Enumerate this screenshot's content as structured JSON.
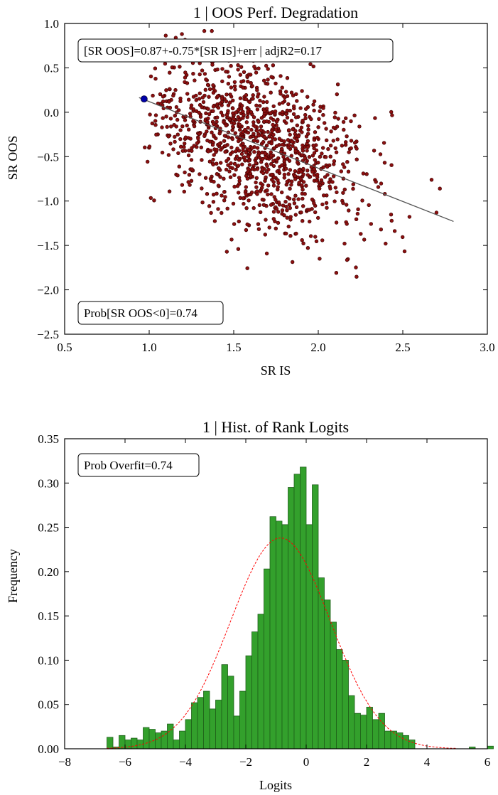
{
  "colors": {
    "scatter_fill": "#8b1010",
    "scatter_edge": "#3a0000",
    "highlight_point": "#0000aa",
    "fit_line": "#555555",
    "bar_fill": "#33a02c",
    "bar_edge": "#1e5e1a",
    "normal_curve": "#ff0000"
  },
  "chart_data": [
    {
      "type": "scatter",
      "title": "1 | OOS Perf. Degradation",
      "xlabel": "SR IS",
      "ylabel": "SR OOS",
      "xlim": [
        0.5,
        3.0
      ],
      "ylim": [
        -2.5,
        1.0
      ],
      "xticks": [
        "0.5",
        "1.0",
        "1.5",
        "2.0",
        "2.5",
        "3.0"
      ],
      "yticks": [
        "1.0",
        "0.5",
        "0.0",
        "−0.5",
        "−1.0",
        "−1.5",
        "−2.0",
        "−2.5"
      ],
      "grid": false,
      "n_points_approx": 1200,
      "center": [
        1.63,
        -0.35
      ],
      "spread": [
        0.32,
        0.5
      ],
      "highlight_point": [
        0.97,
        0.15
      ],
      "regression": {
        "intercept": 0.87,
        "slope": -0.75,
        "x_range": [
          0.94,
          2.8
        ]
      },
      "fit_text": "[SR OOS]=0.87+-0.75*[SR IS]+err | adjR2=0.17",
      "prob_text": "Prob[SR OOS<0]=0.74"
    },
    {
      "type": "bar",
      "title": "1 | Hist. of Rank Logits",
      "xlabel": "Logits",
      "ylabel": "Frequency",
      "xlim": [
        -8,
        6
      ],
      "ylim": [
        0.0,
        0.35
      ],
      "xticks": [
        "−8",
        "−6",
        "−4",
        "−2",
        "0",
        "2",
        "4",
        "6"
      ],
      "yticks": [
        "0.35",
        "0.30",
        "0.25",
        "0.20",
        "0.15",
        "0.10",
        "0.05",
        "0.00"
      ],
      "grid": false,
      "bin_start": -6.6,
      "bin_width": 0.2,
      "values": [
        0.013,
        0.002,
        0.015,
        0.01,
        0.012,
        0.01,
        0.024,
        0.022,
        0.018,
        0.02,
        0.028,
        0.01,
        0.02,
        0.033,
        0.052,
        0.058,
        0.065,
        0.045,
        0.055,
        0.095,
        0.082,
        0.037,
        0.065,
        0.105,
        0.132,
        0.152,
        0.203,
        0.262,
        0.257,
        0.253,
        0.295,
        0.31,
        0.318,
        0.253,
        0.298,
        0.193,
        0.168,
        0.143,
        0.112,
        0.1,
        0.06,
        0.04,
        0.038,
        0.047,
        0.033,
        0.04,
        0.02,
        0.02,
        0.018,
        0.015,
        0.01,
        0.0,
        0.0,
        0.0,
        0.0,
        0.0,
        0.0,
        0.0,
        0.0,
        0.0,
        0.002,
        0.0,
        0.0,
        0.003
      ],
      "normal_fit": {
        "mean": -0.85,
        "std": 1.65,
        "peak": 0.238
      },
      "prob_text": "Prob Overfit=0.74"
    }
  ]
}
